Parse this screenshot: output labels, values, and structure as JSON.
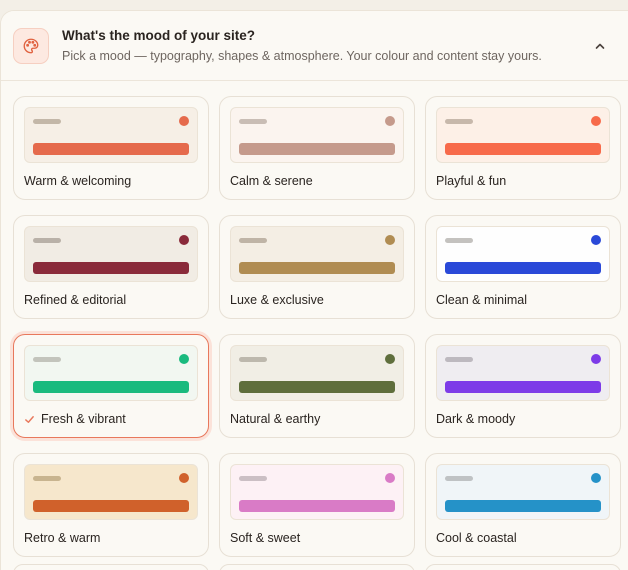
{
  "header": {
    "title": "What's the mood of your site?",
    "subtitle": "Pick a mood — typography, shapes & atmosphere. Your colour and content stay yours.",
    "icon": "palette-icon",
    "collapse_icon": "chevron-up-icon"
  },
  "moods": [
    {
      "label": "Warm & welcoming",
      "bg": "#f6efe6",
      "pill": "#c3b7a8",
      "accent": "#e56a4c",
      "selected": false
    },
    {
      "label": "Calm & serene",
      "bg": "#fbf4ef",
      "pill": "#c9bdb5",
      "accent": "#c59a8c",
      "selected": false
    },
    {
      "label": "Playful & fun",
      "bg": "#fdf0e7",
      "pill": "#c7b8ab",
      "accent": "#f76a4a",
      "selected": false
    },
    {
      "label": "Refined & editorial",
      "bg": "#f1ece4",
      "pill": "#b9b1a8",
      "accent": "#8a2a3a",
      "selected": false
    },
    {
      "label": "Luxe & exclusive",
      "bg": "#f4eee4",
      "pill": "#bfb4a6",
      "accent": "#b08c52",
      "selected": false
    },
    {
      "label": "Clean & minimal",
      "bg": "#fefefe",
      "pill": "#c4c2bf",
      "accent": "#2a49d8",
      "selected": false
    },
    {
      "label": "Fresh & vibrant",
      "bg": "#f2f7f1",
      "pill": "#c3c4bc",
      "accent": "#19ba7e",
      "selected": true
    },
    {
      "label": "Natural & earthy",
      "bg": "#f1eee5",
      "pill": "#bdb8ad",
      "accent": "#5f6e3c",
      "selected": false
    },
    {
      "label": "Dark & moody",
      "bg": "#efedf1",
      "pill": "#bdb9bf",
      "accent": "#7d3be8",
      "selected": false
    },
    {
      "label": "Retro & warm",
      "bg": "#f6e7cc",
      "pill": "#c8b48f",
      "accent": "#d0612b",
      "selected": false
    },
    {
      "label": "Soft & sweet",
      "bg": "#fdf1f5",
      "pill": "#cbbfc4",
      "accent": "#d97bc6",
      "selected": false
    },
    {
      "label": "Cool & coastal",
      "bg": "#f0f5f8",
      "pill": "#bfc2c4",
      "accent": "#2592c8",
      "selected": false
    }
  ],
  "colors": {
    "selected_border": "#e8785c",
    "check": "#e8785c"
  }
}
